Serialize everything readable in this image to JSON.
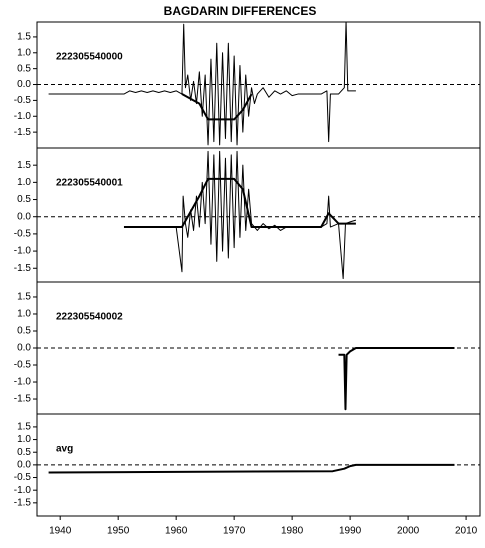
{
  "chart_data": [
    {
      "type": "line",
      "title": "BAGDARIN DIFFERENCES",
      "annotation": "222305540000",
      "xlim": [
        1936,
        2012.4
      ],
      "ylim": [
        -2,
        1.97
      ],
      "hline": 0,
      "yticks": [
        {
          "value": 1.5,
          "label": "1.5"
        },
        {
          "value": 1,
          "label": "1.0"
        },
        {
          "value": 0.5,
          "label": "0.5"
        },
        {
          "value": 0,
          "label": "0.0"
        },
        {
          "value": -0.5,
          "label": "-0.5"
        },
        {
          "value": -1,
          "label": "-1.0"
        },
        {
          "value": -1.5,
          "label": "-1.5"
        }
      ],
      "series": [
        {
          "color": "#000000",
          "line_width": 1,
          "x": [
            1938,
            1951,
            1952,
            1953,
            1954,
            1955,
            1956,
            1957,
            1958,
            1959,
            1960,
            1961,
            1961.3,
            1961.6,
            1962,
            1962.5,
            1963,
            1963.5,
            1964,
            1964.5,
            1965,
            1965.5,
            1966,
            1966.5,
            1967,
            1967.5,
            1968,
            1968.5,
            1969,
            1969.5,
            1970,
            1970.5,
            1971,
            1971.5,
            1972,
            1972.5,
            1973,
            1973.5,
            1974,
            1975,
            1976,
            1977,
            1978,
            1979,
            1980,
            1981,
            1985,
            1986,
            1986.3,
            1986.6,
            1988,
            1989,
            1989.3,
            1989.6,
            1991
          ],
          "values": [
            -0.3,
            -0.3,
            -0.2,
            -0.25,
            -0.2,
            -0.25,
            -0.2,
            -0.25,
            -0.2,
            -0.25,
            -0.2,
            -0.3,
            1.9,
            -0.1,
            0.3,
            -0.5,
            0.1,
            -0.6,
            0.4,
            -1.0,
            0.3,
            -1.9,
            0.8,
            -1.8,
            1.3,
            -1.9,
            1.0,
            -1.7,
            1.3,
            -1.8,
            0.9,
            -1.9,
            0.6,
            -1.5,
            0.3,
            -1.0,
            -0.1,
            -0.6,
            -0.3,
            -0.1,
            -0.4,
            -0.2,
            -0.3,
            -0.2,
            -0.35,
            -0.3,
            -0.3,
            -0.2,
            -1.8,
            -0.3,
            -0.3,
            -0.1,
            2.0,
            -0.2,
            -0.2
          ]
        },
        {
          "color": "#000000",
          "line_width": 2,
          "x": [
            1961,
            1964,
            1965.5,
            1970,
            1971.5,
            1973
          ],
          "values": [
            -0.3,
            -0.6,
            -1.1,
            -1.1,
            -0.8,
            -0.3
          ]
        }
      ]
    },
    {
      "type": "line",
      "annotation": "222305540001",
      "xlim": [
        1936,
        2012.4
      ],
      "ylim": [
        -1.9,
        2.0
      ],
      "hline": 0,
      "yticks": [
        {
          "value": 1.5,
          "label": "1.5"
        },
        {
          "value": 1,
          "label": "1.0"
        },
        {
          "value": 0.5,
          "label": "0.5"
        },
        {
          "value": 0,
          "label": "0.0"
        },
        {
          "value": -0.5,
          "label": "-0.5"
        },
        {
          "value": -1,
          "label": "-1.0"
        },
        {
          "value": -1.5,
          "label": "-1.5"
        }
      ],
      "series": [
        {
          "color": "#000000",
          "line_width": 1,
          "x": [
            1951,
            1960,
            1961,
            1961.2,
            1961.6,
            1962,
            1962.5,
            1963,
            1963.5,
            1964,
            1964.5,
            1965,
            1965.5,
            1966,
            1966.5,
            1967,
            1967.5,
            1968,
            1968.5,
            1969,
            1969.5,
            1970,
            1970.5,
            1971,
            1971.5,
            1972,
            1972.5,
            1973,
            1974,
            1975,
            1976,
            1977,
            1978,
            1979,
            1980,
            1985,
            1986,
            1986.3,
            1986.6,
            1988,
            1988.8,
            1989.2,
            1990,
            1991
          ],
          "values": [
            -0.3,
            -0.3,
            -1.6,
            0.6,
            -0.2,
            -0.6,
            0.2,
            -0.4,
            0.6,
            -0.3,
            1.0,
            -0.2,
            1.9,
            -0.8,
            1.8,
            -1.3,
            1.9,
            -1.0,
            1.7,
            -1.2,
            1.8,
            -0.9,
            1.9,
            -0.6,
            1.5,
            -0.4,
            0.8,
            -0.2,
            -0.4,
            -0.2,
            -0.35,
            -0.25,
            -0.4,
            -0.3,
            -0.3,
            -0.3,
            -0.2,
            0.6,
            -0.3,
            -0.2,
            -1.8,
            -0.2,
            -0.15,
            -0.1
          ]
        },
        {
          "color": "#000000",
          "line_width": 2,
          "x": [
            1951,
            1960,
            1961,
            1964,
            1965.5,
            1970,
            1971.5,
            1973,
            1985,
            1986.3,
            1988,
            1991
          ],
          "values": [
            -0.3,
            -0.3,
            -0.3,
            0.6,
            1.1,
            1.1,
            0.8,
            -0.3,
            -0.3,
            0.1,
            -0.2,
            -0.2
          ]
        }
      ]
    },
    {
      "type": "line",
      "annotation": "222305540002",
      "xlim": [
        1936,
        2012.4
      ],
      "ylim": [
        -1.94,
        1.94
      ],
      "hline": 0,
      "yticks": [
        {
          "value": 1.5,
          "label": "1.5"
        },
        {
          "value": 1,
          "label": "1.0"
        },
        {
          "value": 0.5,
          "label": "0.5"
        },
        {
          "value": 0,
          "label": "0.0"
        },
        {
          "value": -0.5,
          "label": "-0.5"
        },
        {
          "value": -1,
          "label": "-1.0"
        },
        {
          "value": -1.5,
          "label": "-1.5"
        }
      ],
      "series": [
        {
          "color": "#000000",
          "line_width": 2,
          "x": [
            1988,
            1989,
            1989.2,
            1989.4,
            1990,
            1991,
            2008
          ],
          "values": [
            -0.2,
            -0.2,
            -1.8,
            -0.2,
            -0.1,
            0,
            0
          ]
        }
      ]
    },
    {
      "type": "line",
      "annotation": "avg",
      "xlim": [
        1936,
        2012.4
      ],
      "ylim": [
        -2.02,
        2.01
      ],
      "hline": 0,
      "yticks": [
        {
          "value": 1.5,
          "label": "1.5"
        },
        {
          "value": 1,
          "label": "1.0"
        },
        {
          "value": 0.5,
          "label": "0.5"
        },
        {
          "value": 0,
          "label": "0.0"
        },
        {
          "value": -0.5,
          "label": "-0.5"
        },
        {
          "value": -1,
          "label": "-1.0"
        },
        {
          "value": -1.5,
          "label": "-1.5"
        }
      ],
      "xticks": [
        1940,
        1950,
        1960,
        1970,
        1980,
        1990,
        2000,
        2010
      ],
      "series": [
        {
          "color": "#000000",
          "line_width": 2,
          "x": [
            1938,
            1987,
            1988,
            1989,
            1990,
            1991,
            2008
          ],
          "values": [
            -0.3,
            -0.25,
            -0.2,
            -0.15,
            -0.05,
            0,
            0
          ]
        }
      ]
    }
  ]
}
